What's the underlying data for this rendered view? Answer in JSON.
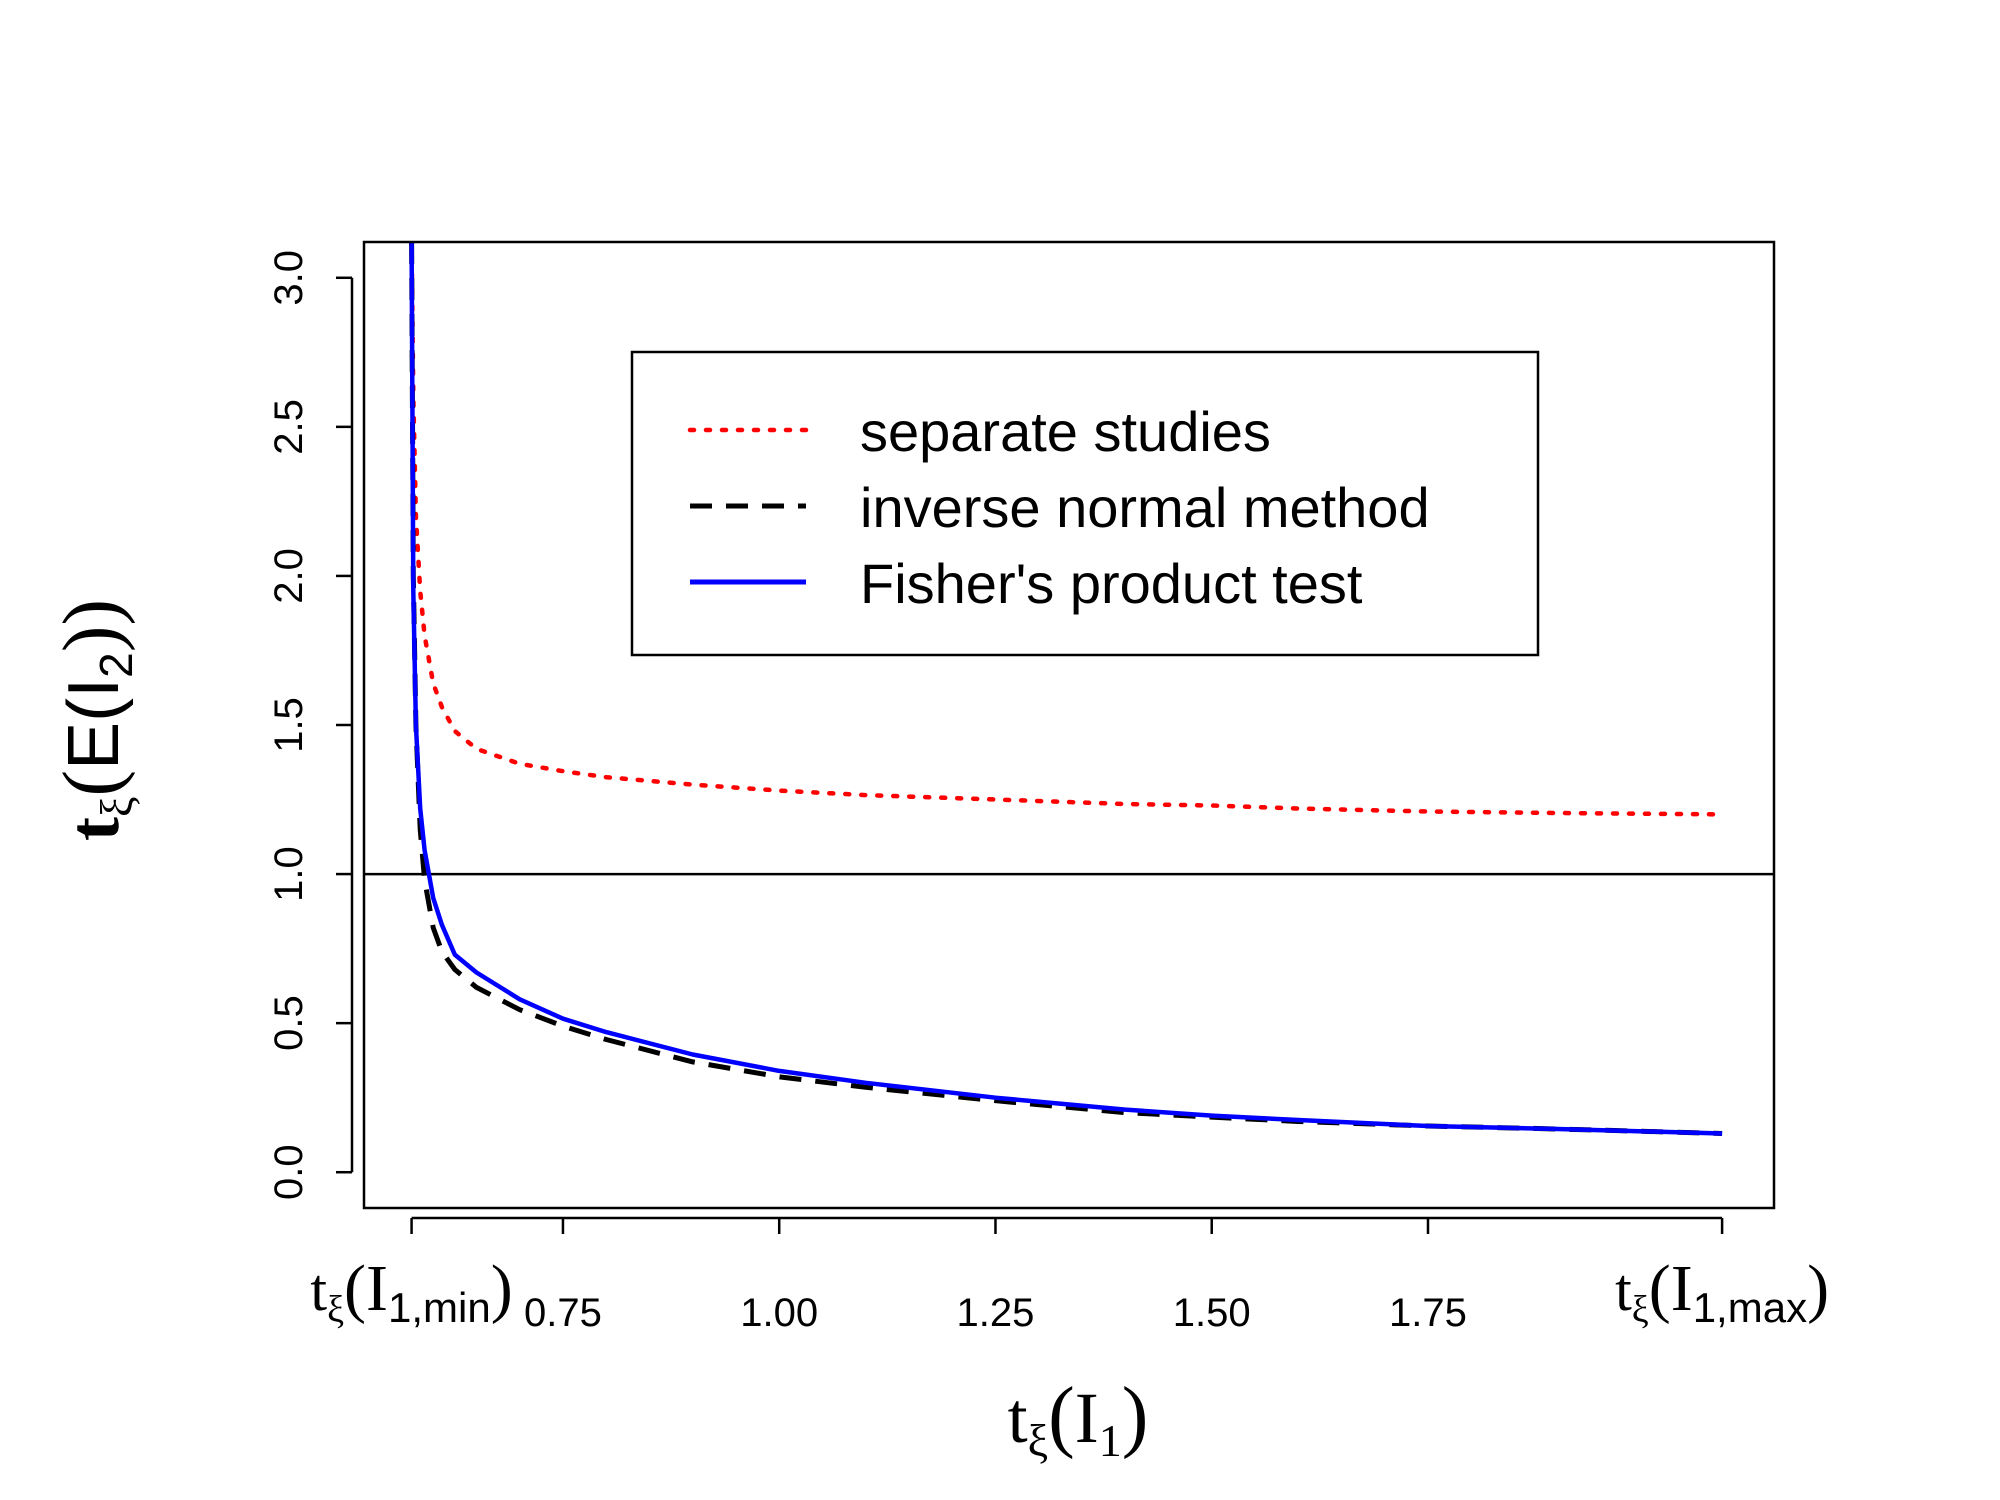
{
  "chart_data": {
    "type": "line",
    "title": "",
    "xlabel": {
      "base": "t",
      "sub": "ξ",
      "open": "(",
      "var": "I",
      "var_sub": "1",
      "close": ")"
    },
    "ylabel": {
      "base": "t",
      "sub": "ξ",
      "open": "(",
      "func": "E(",
      "var": "I",
      "var_sub": "2",
      "close": "))"
    },
    "xlim": [
      0.52,
      2.15
    ],
    "ylim": [
      -0.12,
      3.12
    ],
    "x_ticks": [
      {
        "value": 0.575,
        "label_parts": [
          "t",
          "ξ",
          "(I",
          "1,min",
          ")"
        ]
      },
      {
        "value": 0.75,
        "label": "0.75"
      },
      {
        "value": 1.0,
        "label": "1.00"
      },
      {
        "value": 1.25,
        "label": "1.25"
      },
      {
        "value": 1.5,
        "label": "1.50"
      },
      {
        "value": 1.75,
        "label": "1.75"
      },
      {
        "value": 2.09,
        "label_parts": [
          "t",
          "ξ",
          "(I",
          "1,max",
          ")"
        ]
      }
    ],
    "y_ticks": [
      {
        "value": 0.0,
        "label": "0.0"
      },
      {
        "value": 0.5,
        "label": "0.5"
      },
      {
        "value": 1.0,
        "label": "1.0"
      },
      {
        "value": 1.5,
        "label": "1.5"
      },
      {
        "value": 2.0,
        "label": "2.0"
      },
      {
        "value": 2.5,
        "label": "2.5"
      },
      {
        "value": 3.0,
        "label": "3.0"
      }
    ],
    "reference_line": {
      "y": 1.0,
      "color": "#000000"
    },
    "series": [
      {
        "name": "separate studies",
        "color": "#ff0000",
        "style": "dotted",
        "x": [
          0.575,
          0.577,
          0.58,
          0.585,
          0.59,
          0.6,
          0.61,
          0.625,
          0.65,
          0.7,
          0.75,
          0.8,
          0.9,
          1.0,
          1.1,
          1.25,
          1.4,
          1.5,
          1.6,
          1.75,
          1.9,
          2.09
        ],
        "y": [
          3.12,
          2.6,
          2.2,
          1.95,
          1.8,
          1.64,
          1.56,
          1.48,
          1.42,
          1.37,
          1.345,
          1.325,
          1.3,
          1.28,
          1.265,
          1.25,
          1.235,
          1.23,
          1.22,
          1.21,
          1.205,
          1.2
        ]
      },
      {
        "name": "inverse normal method",
        "color": "#000000",
        "style": "dashed",
        "x": [
          0.575,
          0.577,
          0.58,
          0.585,
          0.59,
          0.6,
          0.61,
          0.625,
          0.65,
          0.7,
          0.75,
          0.8,
          0.9,
          1.0,
          1.1,
          1.25,
          1.4,
          1.5,
          1.6,
          1.75,
          1.9,
          2.09
        ],
        "y": [
          3.12,
          2.0,
          1.5,
          1.15,
          0.98,
          0.82,
          0.74,
          0.68,
          0.62,
          0.545,
          0.49,
          0.445,
          0.37,
          0.32,
          0.285,
          0.24,
          0.2,
          0.185,
          0.17,
          0.155,
          0.145,
          0.13
        ]
      },
      {
        "name": "Fisher's product test",
        "color": "#0000ff",
        "style": "solid",
        "x": [
          0.575,
          0.577,
          0.58,
          0.585,
          0.59,
          0.6,
          0.61,
          0.625,
          0.65,
          0.7,
          0.75,
          0.8,
          0.9,
          1.0,
          1.1,
          1.25,
          1.4,
          1.5,
          1.6,
          1.75,
          1.9,
          2.09
        ],
        "y": [
          3.12,
          1.95,
          1.5,
          1.22,
          1.08,
          0.92,
          0.83,
          0.73,
          0.67,
          0.58,
          0.515,
          0.47,
          0.395,
          0.34,
          0.3,
          0.25,
          0.21,
          0.19,
          0.175,
          0.155,
          0.145,
          0.13
        ]
      }
    ],
    "legend": {
      "position": "top-right",
      "entries": [
        "separate studies",
        "inverse normal method",
        "Fisher's product test"
      ]
    }
  }
}
